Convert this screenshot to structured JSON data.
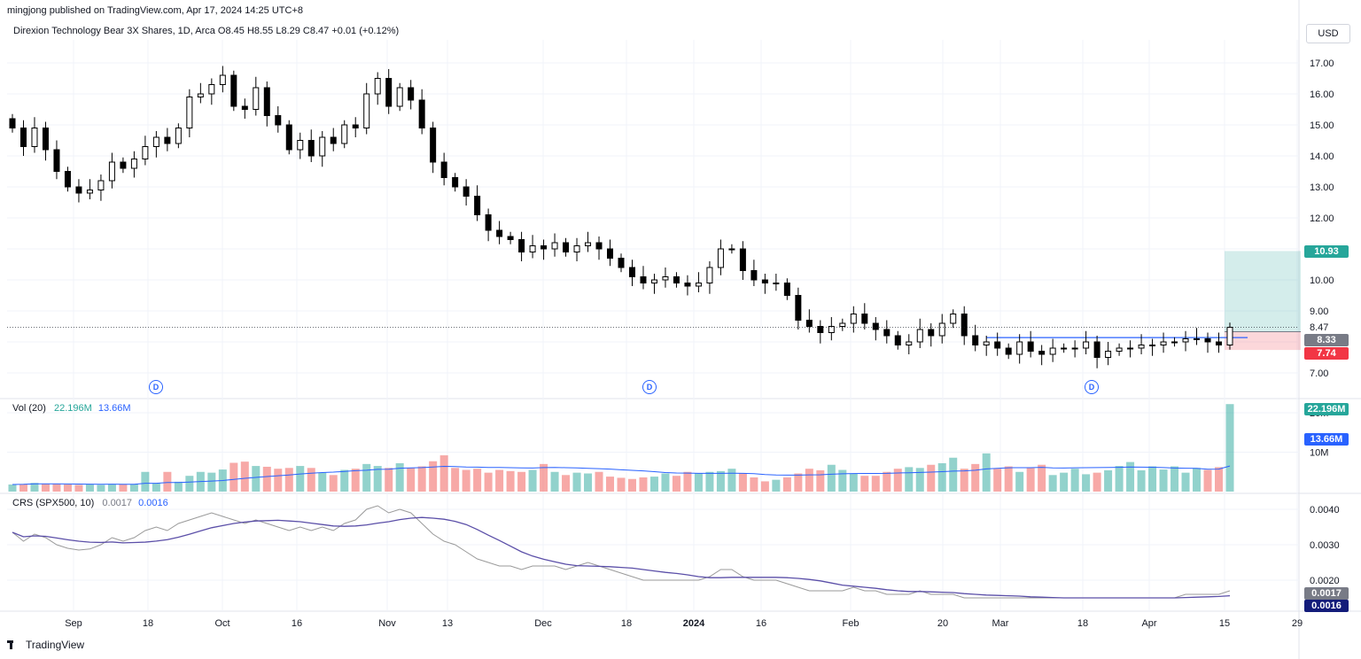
{
  "header": {
    "published": "mingjong published on TradingView.com, Apr 17, 2024 14:25 UTC+8",
    "symbol_line": "Direxion Technology Bear 3X Shares, 1D, Arca  O8.45  H8.55  L8.29  C8.47  +0.01 (+0.12%)"
  },
  "currency_button": "USD",
  "price_tags": {
    "target": "10.93",
    "current": "8.47",
    "entry": "8.33",
    "stop": "7.74"
  },
  "volume_tags": {
    "vol": "22.196M",
    "ma": "13.66M"
  },
  "crs_tags": {
    "crs": "0.0017",
    "ma": "0.0016"
  },
  "volume_label": {
    "name": "Vol (20)",
    "v1": "22.196M",
    "v2": "13.66M"
  },
  "crs_label": {
    "name": "CRS (SPX500, 10)",
    "v1": "0.0017",
    "v2": "0.0016"
  },
  "dividend_marker": "D",
  "brand": "TradingView",
  "colors": {
    "up": "#ffffff",
    "down": "#000000",
    "vol_up": "#26a69a",
    "vol_down": "#ef5350",
    "ma": "#2962ff",
    "target": "#26a69a",
    "stop": "#f23645"
  },
  "chart_data": {
    "type": "candlestick",
    "price_axis_ticks": [
      "17.00",
      "16.00",
      "15.00",
      "14.00",
      "13.00",
      "12.00",
      "11.00",
      "10.00",
      "9.00",
      "7.00"
    ],
    "volume_axis_ticks": [
      "20M",
      "10M"
    ],
    "crs_axis_ticks": [
      "0.0040",
      "0.0030",
      "0.0020"
    ],
    "x_tick_labels": [
      "Sep",
      "18",
      "Oct",
      "16",
      "Nov",
      "13",
      "Dec",
      "18",
      "2024",
      "16",
      "Feb",
      "20",
      "Mar",
      "18",
      "Apr",
      "15",
      "29"
    ],
    "ylim_price": [
      6.6,
      17.9
    ],
    "series": [
      {
        "name": "Direxion Technology Bear 3X Shares",
        "close": [
          14.9,
          14.3,
          14.9,
          14.2,
          13.5,
          13.0,
          12.8,
          12.9,
          13.2,
          13.8,
          13.6,
          13.9,
          14.3,
          14.6,
          14.4,
          14.9,
          15.9,
          16.0,
          16.3,
          16.6,
          15.6,
          15.5,
          16.2,
          15.3,
          15.0,
          14.2,
          14.5,
          14.0,
          14.6,
          14.4,
          15.0,
          14.9,
          16.0,
          16.5,
          15.6,
          16.2,
          15.8,
          14.9,
          13.8,
          13.3,
          13.0,
          12.7,
          12.1,
          11.6,
          11.4,
          11.3,
          10.9,
          11.1,
          11.0,
          11.2,
          10.9,
          11.1,
          11.2,
          11.0,
          10.7,
          10.4,
          10.1,
          9.9,
          10.0,
          10.1,
          9.9,
          9.8,
          9.9,
          10.4,
          11.0,
          11.0,
          10.3,
          10.0,
          9.9,
          9.9,
          9.5,
          8.7,
          8.5,
          8.3,
          8.5,
          8.6,
          8.9,
          8.6,
          8.4,
          8.2,
          7.9,
          8.0,
          8.4,
          8.2,
          8.6,
          8.9,
          8.2,
          7.9,
          8.0,
          7.8,
          7.6,
          8.0,
          7.7,
          7.6,
          7.8,
          7.8,
          7.8,
          8.0,
          7.5,
          7.7,
          7.8,
          7.8,
          7.9,
          7.9,
          8.0,
          8.0,
          8.1,
          8.1,
          8.0,
          7.9,
          8.47
        ],
        "volume": [
          1.8,
          1.9,
          2.2,
          2.0,
          1.9,
          1.8,
          1.7,
          1.8,
          1.7,
          1.9,
          1.8,
          1.9,
          5.0,
          2.1,
          5.0,
          2.5,
          4.0,
          5.0,
          4.8,
          5.6,
          7.3,
          7.6,
          6.5,
          6.3,
          5.8,
          6.0,
          6.5,
          6.0,
          4.8,
          4.2,
          5.5,
          5.8,
          7.0,
          6.5,
          6.0,
          7.2,
          6.0,
          6.4,
          7.7,
          9.2,
          6.0,
          5.5,
          5.8,
          4.8,
          5.5,
          5.2,
          5.0,
          5.5,
          7.0,
          5.0,
          4.2,
          4.8,
          4.6,
          5.0,
          3.8,
          3.5,
          3.2,
          3.6,
          3.8,
          4.6,
          4.0,
          5.0,
          4.6,
          5.0,
          5.2,
          5.8,
          4.6,
          3.6,
          2.6,
          3.0,
          3.6,
          4.6,
          5.8,
          5.4,
          6.8,
          5.5,
          4.6,
          4.0,
          4.0,
          5.0,
          5.8,
          6.2,
          6.0,
          6.8,
          7.2,
          8.6,
          5.8,
          7.0,
          9.7,
          5.8,
          6.4,
          5.0,
          6.0,
          6.8,
          4.2,
          4.8,
          5.8,
          4.4,
          4.8,
          5.4,
          6.5,
          7.5,
          5.4,
          6.4,
          5.6,
          6.4,
          4.8,
          6.0,
          5.5,
          6.2,
          22.196
        ],
        "crs": [
          0.00335,
          0.0031,
          0.0033,
          0.0032,
          0.003,
          0.0029,
          0.00285,
          0.00288,
          0.003,
          0.0032,
          0.0031,
          0.0032,
          0.0034,
          0.0035,
          0.0034,
          0.0036,
          0.0037,
          0.0038,
          0.0039,
          0.0038,
          0.0037,
          0.0036,
          0.0037,
          0.0036,
          0.0035,
          0.0034,
          0.0035,
          0.0034,
          0.0035,
          0.0034,
          0.0036,
          0.0037,
          0.004,
          0.0041,
          0.0039,
          0.004,
          0.0039,
          0.0036,
          0.0033,
          0.0031,
          0.003,
          0.0028,
          0.0026,
          0.0025,
          0.0024,
          0.0024,
          0.0023,
          0.0024,
          0.0024,
          0.0024,
          0.0023,
          0.0024,
          0.0025,
          0.0024,
          0.0023,
          0.0022,
          0.0021,
          0.002,
          0.002,
          0.002,
          0.002,
          0.002,
          0.002,
          0.0021,
          0.0023,
          0.0023,
          0.0021,
          0.002,
          0.002,
          0.002,
          0.0019,
          0.0018,
          0.0017,
          0.0017,
          0.0017,
          0.0017,
          0.0018,
          0.0017,
          0.0017,
          0.0016,
          0.0016,
          0.0016,
          0.0017,
          0.0016,
          0.0016,
          0.0016,
          0.0015,
          0.0015,
          0.0015,
          0.0015,
          0.0015,
          0.0015,
          0.0015,
          0.0015,
          0.0015,
          0.0015,
          0.0015,
          0.0015,
          0.0015,
          0.0015,
          0.0015,
          0.0015,
          0.0015,
          0.0015,
          0.0015,
          0.0015,
          0.0016,
          0.0016,
          0.0016,
          0.0016,
          0.0017
        ]
      }
    ],
    "ma_volume": 13.66,
    "ma_crs": 0.0016,
    "position": {
      "entry": 8.33,
      "target": 10.93,
      "stop": 7.74
    }
  }
}
